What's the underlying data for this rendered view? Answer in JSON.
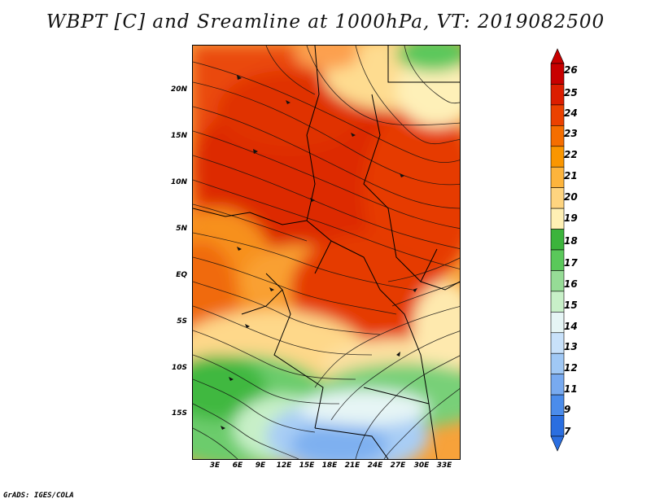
{
  "title": "WBPT [C] and Sreamline at 1000hPa, VT: 2019082500",
  "footer": "GrADS: IGES/COLA",
  "map": {
    "lat_labels": [
      "20N",
      "15N",
      "10N",
      "5N",
      "EQ",
      "5S",
      "10S",
      "15S"
    ],
    "lon_labels": [
      "3E",
      "6E",
      "9E",
      "12E",
      "15E",
      "18E",
      "21E",
      "24E",
      "27E",
      "30E",
      "33E"
    ]
  },
  "colorbar": {
    "labels": [
      "26",
      "25",
      "24",
      "23",
      "22",
      "21",
      "20",
      "19",
      "18",
      "17",
      "16",
      "15",
      "14",
      "13",
      "12",
      "11",
      "9",
      "7"
    ],
    "colors": [
      "#c80000",
      "#dc1e00",
      "#eb4100",
      "#f56e00",
      "#fa9600",
      "#fdb43c",
      "#fed47f",
      "#fff0b4",
      "#3cb43c",
      "#5ac85a",
      "#96dc96",
      "#c8f0c8",
      "#e6f5f5",
      "#c8e1fa",
      "#a0c8f5",
      "#78aaf0",
      "#4b8ceb",
      "#2a6ee0"
    ]
  }
}
